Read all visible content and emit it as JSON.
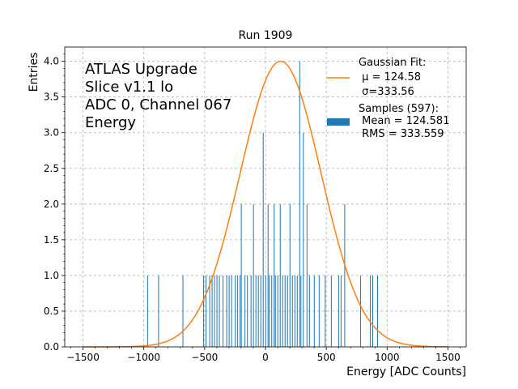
{
  "chart_data": {
    "type": "bar",
    "title": "Run 1909",
    "xlabel": "Energy [ADC Counts]",
    "ylabel": "Entries",
    "xlim": [
      -1650,
      1650
    ],
    "ylim": [
      0,
      4.2
    ],
    "grid": true,
    "xticks": [
      -1500,
      -1000,
      -500,
      0,
      500,
      1000,
      1500
    ],
    "yticks": [
      0.0,
      0.5,
      1.0,
      1.5,
      2.0,
      2.5,
      3.0,
      3.5,
      4.0
    ],
    "annotation_lines": [
      "ATLAS Upgrade",
      "Slice v1.1 lo",
      "ADC 0, Channel 067",
      "Energy"
    ],
    "colors": {
      "histogram": "#1f77b4",
      "fit": "#ff7f0e",
      "grid": "#b0b0b0"
    },
    "legend": {
      "placement": "top-right",
      "entries": [
        {
          "lines": [
            "Gaussian Fit:",
            " μ = 124.58",
            " σ=333.56"
          ],
          "marker": "line"
        },
        {
          "lines": [
            "Samples (597):",
            " Mean = 124.581",
            " RMS = 333.559"
          ],
          "marker": "patch"
        }
      ]
    },
    "fit": {
      "name": "Gaussian Fit",
      "mu": 124.58,
      "sigma": 333.56,
      "amplitude": 4.0,
      "x_range": [
        -1500,
        1500
      ]
    },
    "histogram": {
      "name": "Samples (597)",
      "bin_width": 4,
      "bins": [
        {
          "x": -970,
          "y": 1
        },
        {
          "x": -880,
          "y": 1
        },
        {
          "x": -680,
          "y": 1
        },
        {
          "x": -510,
          "y": 1
        },
        {
          "x": -490,
          "y": 1
        },
        {
          "x": -460,
          "y": 1
        },
        {
          "x": -440,
          "y": 1
        },
        {
          "x": -420,
          "y": 1
        },
        {
          "x": -400,
          "y": 1
        },
        {
          "x": -380,
          "y": 1
        },
        {
          "x": -350,
          "y": 1
        },
        {
          "x": -320,
          "y": 1
        },
        {
          "x": -300,
          "y": 1
        },
        {
          "x": -280,
          "y": 1
        },
        {
          "x": -250,
          "y": 1
        },
        {
          "x": -230,
          "y": 1
        },
        {
          "x": -210,
          "y": 1
        },
        {
          "x": -200,
          "y": 2
        },
        {
          "x": -170,
          "y": 1
        },
        {
          "x": -150,
          "y": 1
        },
        {
          "x": -120,
          "y": 1
        },
        {
          "x": -100,
          "y": 2
        },
        {
          "x": -80,
          "y": 1
        },
        {
          "x": -60,
          "y": 1
        },
        {
          "x": -40,
          "y": 1
        },
        {
          "x": -20,
          "y": 3
        },
        {
          "x": 0,
          "y": 1
        },
        {
          "x": 20,
          "y": 2
        },
        {
          "x": 30,
          "y": 1
        },
        {
          "x": 50,
          "y": 1
        },
        {
          "x": 70,
          "y": 2
        },
        {
          "x": 80,
          "y": 1
        },
        {
          "x": 100,
          "y": 1
        },
        {
          "x": 120,
          "y": 2
        },
        {
          "x": 140,
          "y": 1
        },
        {
          "x": 160,
          "y": 1
        },
        {
          "x": 180,
          "y": 1
        },
        {
          "x": 200,
          "y": 2
        },
        {
          "x": 220,
          "y": 1
        },
        {
          "x": 240,
          "y": 1
        },
        {
          "x": 260,
          "y": 1
        },
        {
          "x": 280,
          "y": 4
        },
        {
          "x": 290,
          "y": 1
        },
        {
          "x": 310,
          "y": 3
        },
        {
          "x": 340,
          "y": 2
        },
        {
          "x": 360,
          "y": 1
        },
        {
          "x": 400,
          "y": 1
        },
        {
          "x": 440,
          "y": 1
        },
        {
          "x": 490,
          "y": 1
        },
        {
          "x": 540,
          "y": 1
        },
        {
          "x": 600,
          "y": 1
        },
        {
          "x": 620,
          "y": 1
        },
        {
          "x": 650,
          "y": 2
        },
        {
          "x": 780,
          "y": 1
        },
        {
          "x": 860,
          "y": 1
        },
        {
          "x": 880,
          "y": 1
        },
        {
          "x": 920,
          "y": 1
        }
      ]
    }
  }
}
